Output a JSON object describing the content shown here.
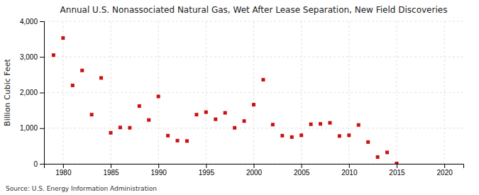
{
  "chart_data": {
    "type": "scatter",
    "title": "Annual U.S. Nonassociated Natural Gas, Wet After Lease Separation, New Field Discoveries",
    "ylabel": "Billion Cubic Feet",
    "annotation": "Source: U.S. Energy Information Administration",
    "color": "#cc1111",
    "marker": "square",
    "grid": true,
    "xlim": [
      1978,
      2022
    ],
    "ylim": [
      0,
      4000
    ],
    "xticks": [
      1980,
      1985,
      1990,
      1995,
      2000,
      2005,
      2010,
      2015,
      2020
    ],
    "yticks": [
      0,
      {
        "value": 1000,
        "label": "1,000"
      },
      {
        "value": 2000,
        "label": "2,000"
      },
      {
        "value": 3000,
        "label": "3,000"
      },
      {
        "value": 4000,
        "label": "4,000"
      }
    ],
    "x": [
      1979,
      1980,
      1981,
      1982,
      1983,
      1984,
      1985,
      1986,
      1987,
      1988,
      1989,
      1990,
      1991,
      1992,
      1993,
      1994,
      1995,
      1996,
      1997,
      1998,
      1999,
      2000,
      2001,
      2002,
      2003,
      2004,
      2005,
      2006,
      2007,
      2008,
      2009,
      2010,
      2011,
      2012,
      2013,
      2014,
      2015
    ],
    "values": [
      3050,
      3530,
      2200,
      2620,
      1380,
      2410,
      870,
      1020,
      1010,
      1620,
      1230,
      1890,
      790,
      650,
      640,
      1380,
      1450,
      1250,
      1430,
      1010,
      1200,
      1660,
      2360,
      1100,
      790,
      750,
      800,
      1110,
      1120,
      1150,
      780,
      800,
      1090,
      610,
      190,
      320,
      10
    ]
  }
}
